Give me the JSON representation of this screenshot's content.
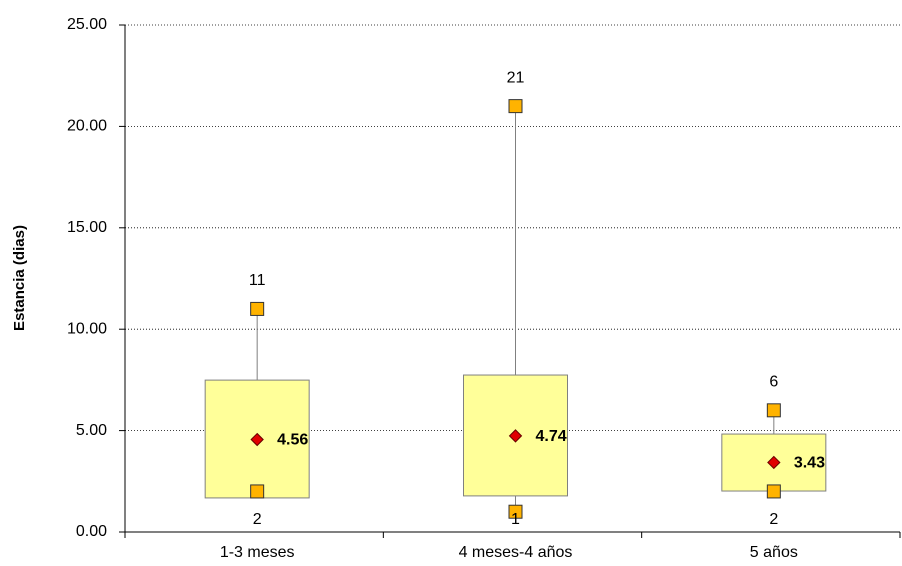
{
  "chart_data": {
    "type": "box",
    "y_label": "Estancia (dias)",
    "categories": [
      "1-3 meses",
      "4 meses-4 años",
      "5 años"
    ],
    "q1": [
      1.68,
      1.78,
      2.02
    ],
    "q3": [
      7.49,
      7.74,
      4.83
    ],
    "min": [
      2,
      1,
      2
    ],
    "max": [
      11,
      21,
      6
    ],
    "mean": [
      4.56,
      4.74,
      3.43
    ],
    "box_color": "#ffff99",
    "marker_color": "#ffb300",
    "mean_color": "#e00000",
    "ylim": [
      0,
      25
    ],
    "yticks": [
      {
        "value": 0,
        "label": "0.00"
      },
      {
        "value": 5,
        "label": "5.00"
      },
      {
        "value": 10,
        "label": "10.00"
      },
      {
        "value": 15,
        "label": "15.00"
      },
      {
        "value": 20,
        "label": "20.00"
      },
      {
        "value": 25,
        "label": "25.00"
      }
    ],
    "grid": true
  }
}
